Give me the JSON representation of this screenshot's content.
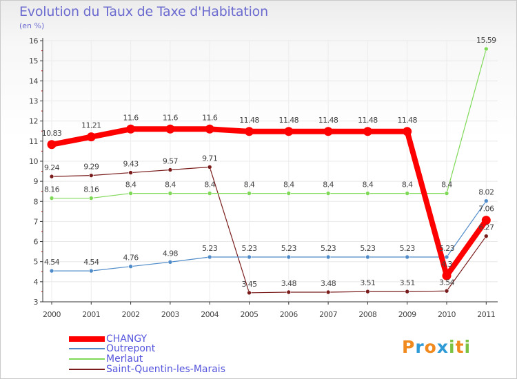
{
  "chart_data": {
    "type": "line",
    "title": "Evolution du Taux de Taxe d'Habitation",
    "subtitle": "(en %)",
    "xlabel": "",
    "ylabel": "",
    "categories": [
      "2000",
      "2001",
      "2002",
      "2003",
      "2004",
      "2005",
      "2006",
      "2007",
      "2008",
      "2009",
      "2010",
      "2011"
    ],
    "ylim": [
      3,
      16
    ],
    "yticks": [
      3,
      4,
      5,
      6,
      7,
      8,
      9,
      10,
      11,
      12,
      13,
      14,
      15,
      16
    ],
    "series": [
      {
        "name": "CHANGY",
        "color": "#ff0000",
        "values": [
          10.83,
          11.21,
          11.6,
          11.6,
          11.6,
          11.48,
          11.48,
          11.48,
          11.48,
          11.48,
          4.3,
          7.06
        ],
        "labels": [
          "10.83",
          "11.21",
          "11.6",
          "11.6",
          "11.6",
          "11.48",
          "11.48",
          "11.48",
          "11.48",
          "11.48",
          "4.3",
          "7.06"
        ]
      },
      {
        "name": "Outrepont",
        "color": "#4f8bc9",
        "values": [
          4.54,
          4.54,
          4.76,
          4.98,
          5.23,
          5.23,
          5.23,
          5.23,
          5.23,
          5.23,
          5.23,
          8.02
        ],
        "labels": [
          "4.54",
          "4.54",
          "4.76",
          "4.98",
          "5.23",
          "5.23",
          "5.23",
          "5.23",
          "5.23",
          "5.23",
          "5.23",
          "8.02"
        ]
      },
      {
        "name": "Merlaut",
        "color": "#7ed957",
        "values": [
          8.16,
          8.16,
          8.4,
          8.4,
          8.4,
          8.4,
          8.4,
          8.4,
          8.4,
          8.4,
          8.4,
          15.59
        ],
        "labels": [
          "8.16",
          "8.16",
          "8.4",
          "8.4",
          "8.4",
          "8.4",
          "8.4",
          "8.4",
          "8.4",
          "8.4",
          "8.4",
          "15.59"
        ]
      },
      {
        "name": "Saint-Quentin-les-Marais",
        "color": "#7a1c1c",
        "values": [
          9.24,
          9.29,
          9.43,
          9.57,
          9.71,
          3.45,
          3.48,
          3.48,
          3.51,
          3.51,
          3.54,
          6.27
        ],
        "labels": [
          "9.24",
          "9.29",
          "9.43",
          "9.57",
          "9.71",
          "3.45",
          "3.48",
          "3.48",
          "3.51",
          "3.51",
          "3.54",
          "6.27"
        ]
      }
    ]
  },
  "logo": {
    "text": "Proxiti",
    "letters": [
      "P",
      "r",
      "o",
      "x",
      "i",
      "t",
      "i"
    ],
    "colors": [
      "#f08a1e",
      "#2e9bd6",
      "#f08a1e",
      "#2e9bd6",
      "#7cc242",
      "#f08a1e",
      "#7cc242"
    ]
  }
}
